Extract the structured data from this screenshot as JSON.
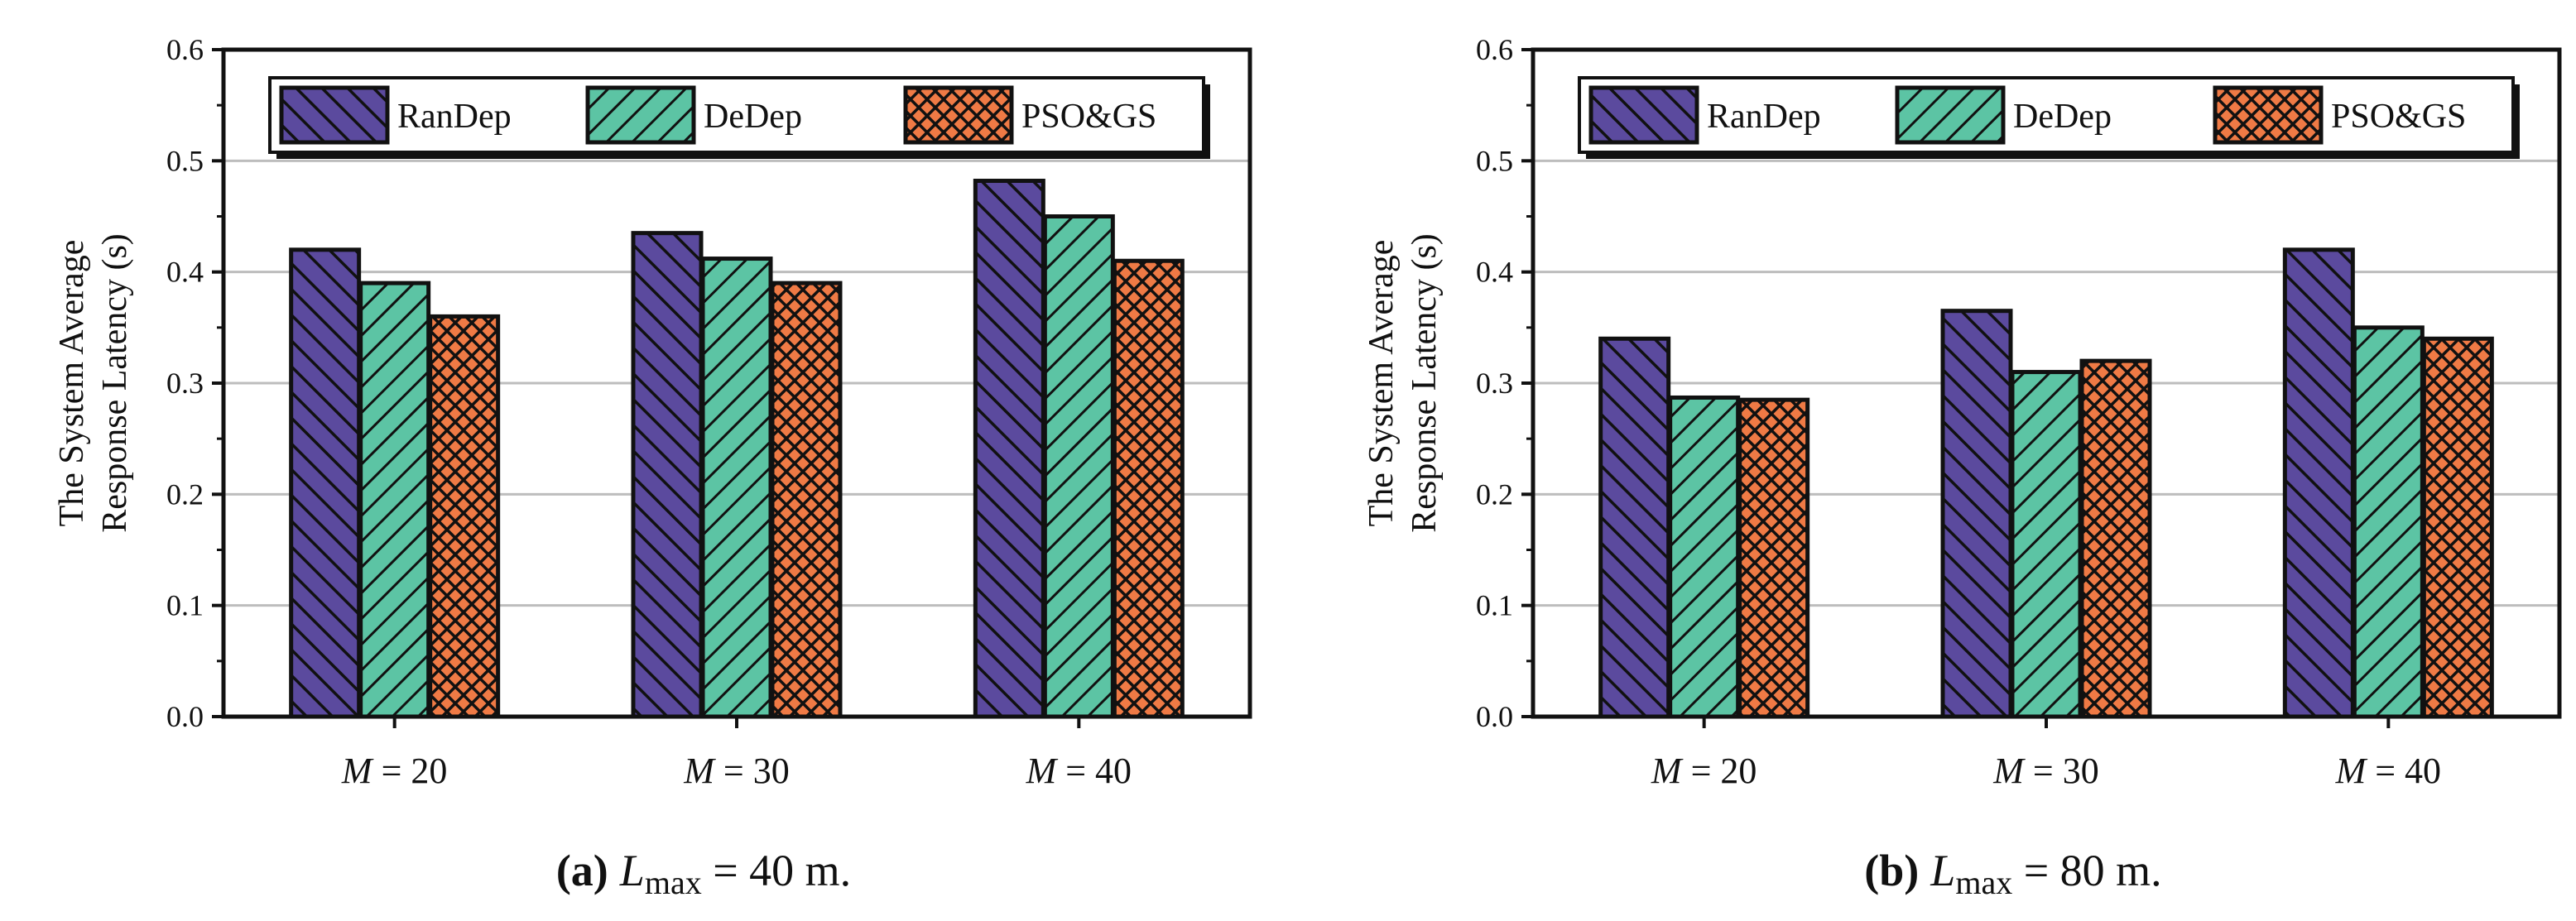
{
  "chart_data": [
    {
      "type": "bar",
      "caption_letter": "(a)",
      "caption_var": "L",
      "caption_sub": "max",
      "caption_rest": " = 40 m.",
      "ylabel_lines": [
        "The System Average",
        "Response Latency (s)"
      ],
      "ylim": [
        0,
        0.6
      ],
      "yticks": [
        "0.0",
        "0.1",
        "0.2",
        "0.3",
        "0.4",
        "0.5",
        "0.6"
      ],
      "categories": [
        {
          "var": "M",
          "rest": " = 20"
        },
        {
          "var": "M",
          "rest": " = 30"
        },
        {
          "var": "M",
          "rest": " = 40"
        }
      ],
      "series": [
        {
          "name": "RanDep",
          "values": [
            0.42,
            0.435,
            0.482
          ]
        },
        {
          "name": "DeDep",
          "values": [
            0.39,
            0.412,
            0.45
          ]
        },
        {
          "name": "PSO&GS",
          "values": [
            0.36,
            0.39,
            0.41
          ]
        }
      ],
      "legend_position": "top",
      "grid": true
    },
    {
      "type": "bar",
      "caption_letter": "(b)",
      "caption_var": "L",
      "caption_sub": "max",
      "caption_rest": " = 80 m.",
      "ylabel_lines": [
        "The System Average",
        "Response Latency (s)"
      ],
      "ylim": [
        0,
        0.6
      ],
      "yticks": [
        "0.0",
        "0.1",
        "0.2",
        "0.3",
        "0.4",
        "0.5",
        "0.6"
      ],
      "categories": [
        {
          "var": "M",
          "rest": " = 20"
        },
        {
          "var": "M",
          "rest": " = 30"
        },
        {
          "var": "M",
          "rest": " = 40"
        }
      ],
      "series": [
        {
          "name": "RanDep",
          "values": [
            0.34,
            0.365,
            0.42
          ]
        },
        {
          "name": "DeDep",
          "values": [
            0.287,
            0.31,
            0.35
          ]
        },
        {
          "name": "PSO&GS",
          "values": [
            0.285,
            0.32,
            0.34
          ]
        }
      ],
      "legend_position": "top",
      "grid": true
    }
  ],
  "colors": {
    "RanDep": "#5b4a9e",
    "DeDep": "#5cc4a4",
    "PSO&GS": "#ef7a45",
    "grid": "#bdbdbd",
    "axis": "#111111"
  }
}
